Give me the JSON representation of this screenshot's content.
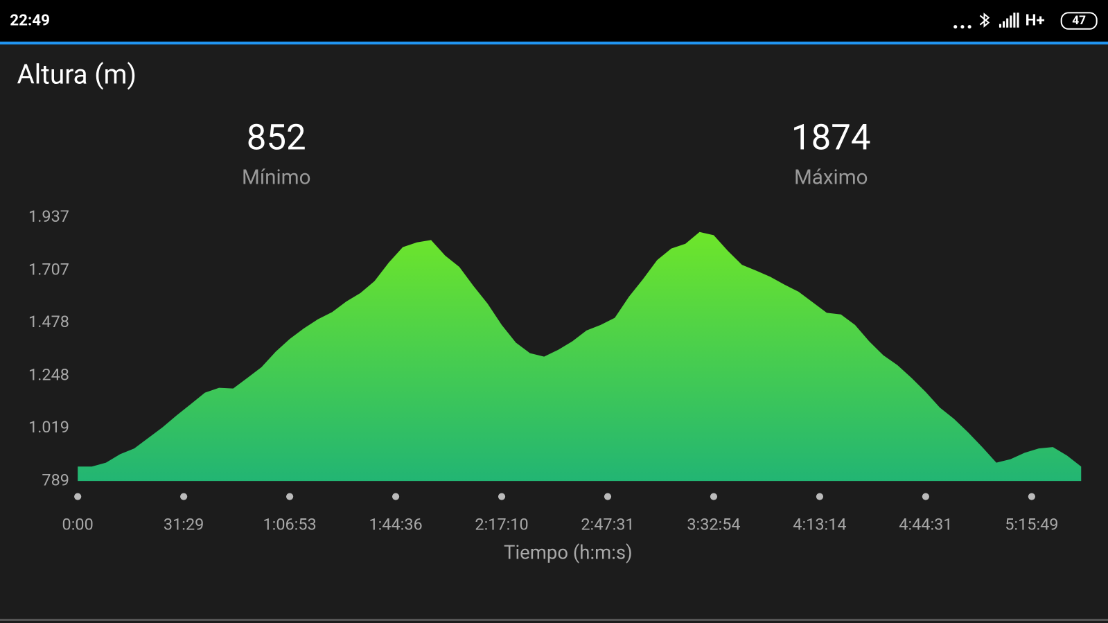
{
  "status_bar": {
    "time": "22:49",
    "network": "H+",
    "battery": 47
  },
  "summary": [
    {
      "value": 852,
      "label": "Mínimo"
    },
    {
      "value": 1874,
      "label": "Máximo"
    }
  ],
  "chart_data": {
    "type": "area",
    "title": "Altura (m)",
    "xlabel": "Tiempo (h:m:s)",
    "x": [
      0,
      2,
      4,
      6,
      8,
      10,
      12,
      14,
      16,
      18,
      20,
      22,
      24,
      26,
      28,
      30,
      32,
      34,
      36,
      38,
      40,
      42,
      44,
      46,
      48,
      50,
      52,
      54,
      56,
      58,
      60,
      62,
      64,
      66,
      68,
      70,
      72,
      74,
      76,
      78,
      80,
      82,
      84,
      86,
      88,
      90,
      92,
      94,
      96,
      98,
      100,
      102,
      104,
      106,
      108,
      110,
      112,
      114,
      116,
      118,
      120,
      122,
      124,
      126,
      128,
      130,
      132,
      134,
      136,
      138,
      140,
      142
    ],
    "values": [
      852,
      852,
      869,
      906,
      931,
      977,
      1023,
      1075,
      1124,
      1174,
      1195,
      1192,
      1238,
      1285,
      1352,
      1408,
      1454,
      1494,
      1525,
      1571,
      1608,
      1660,
      1740,
      1808,
      1829,
      1839,
      1771,
      1722,
      1639,
      1562,
      1469,
      1392,
      1346,
      1331,
      1361,
      1398,
      1445,
      1469,
      1500,
      1592,
      1669,
      1752,
      1802,
      1823,
      1874,
      1860,
      1792,
      1731,
      1706,
      1679,
      1645,
      1614,
      1568,
      1522,
      1515,
      1469,
      1398,
      1337,
      1294,
      1238,
      1177,
      1109,
      1060,
      1001,
      937,
      869,
      884,
      912,
      931,
      937,
      900,
      852
    ],
    "color_top": "#6ee62a",
    "color_bottom": "#22b573",
    "xlim": [
      0,
      142
    ],
    "xticks": [
      {
        "value": 0,
        "label": "0:00"
      },
      {
        "value": 15,
        "label": "31:29"
      },
      {
        "value": 30,
        "label": "1:06:53"
      },
      {
        "value": 45,
        "label": "1:44:36"
      },
      {
        "value": 60,
        "label": "2:17:10"
      },
      {
        "value": 75,
        "label": "2:47:31"
      },
      {
        "value": 90,
        "label": "3:32:54"
      },
      {
        "value": 105,
        "label": "4:13:14"
      },
      {
        "value": 120,
        "label": "4:44:31"
      },
      {
        "value": 135,
        "label": "5:15:49"
      }
    ],
    "ylim": [
      789,
      1937
    ],
    "yticks": [
      789,
      {
        "value": 1019,
        "label": "1.019"
      },
      {
        "value": 1248,
        "label": "1.248"
      },
      {
        "value": 1478,
        "label": "1.478"
      },
      {
        "value": 1707,
        "label": "1.707"
      },
      {
        "value": 1937,
        "label": "1.937"
      }
    ],
    "grid": false
  }
}
